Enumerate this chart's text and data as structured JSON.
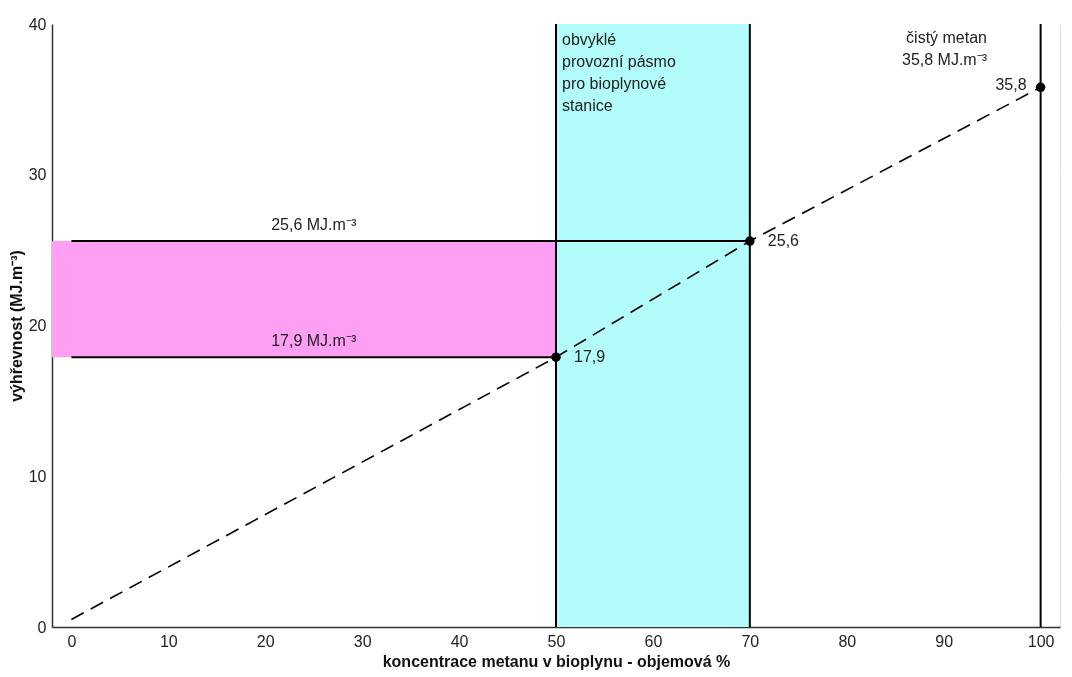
{
  "chart_data": {
    "type": "line",
    "xlabel": "koncentrace  metanu v bioplynu - objemová  %",
    "ylabel": "výhřevnost (MJ.m⁻³)",
    "xlim": [
      -2,
      102
    ],
    "ylim": [
      0,
      40
    ],
    "xticks": [
      0,
      10,
      20,
      30,
      40,
      50,
      60,
      70,
      80,
      90,
      100
    ],
    "yticks": [
      0,
      10,
      20,
      30,
      40
    ],
    "grid": true,
    "series": [
      {
        "color": "#000000",
        "line_style": "dashed",
        "marker": "none",
        "x": [
          0,
          50,
          70,
          100
        ],
        "values": [
          0.5,
          17.9,
          25.6,
          35.8
        ]
      },
      {
        "type": "scatter",
        "color": "#000000",
        "marker": "circle",
        "x": [
          50,
          70,
          100
        ],
        "values": [
          17.9,
          25.6,
          35.8
        ],
        "value_labels": [
          "17,9",
          "25,6",
          "35,8"
        ]
      },
      {
        "type": "line",
        "color": "#000000",
        "line_style": "solid",
        "marker": "none",
        "x": [
          0,
          70
        ],
        "values": [
          25.6,
          25.6
        ]
      },
      {
        "type": "line",
        "color": "#000000",
        "line_style": "solid",
        "marker": "none",
        "x": [
          0,
          50
        ],
        "values": [
          17.9,
          17.9
        ]
      }
    ],
    "bands": [
      {
        "axis": "x",
        "from": 50,
        "to": 70,
        "label": "obvyklé\nprovozní pásmo\npro bioplynové\nstanice",
        "color": "#b3fcfc"
      },
      {
        "axis": "y",
        "from": 17.9,
        "to": 25.6,
        "label": null,
        "color": "#ff9ff3"
      }
    ],
    "ref_lines": [
      {
        "axis": "x",
        "value": 50,
        "label": null,
        "color": "#000000"
      },
      {
        "axis": "x",
        "value": 70,
        "label": null,
        "color": "#000000"
      },
      {
        "axis": "x",
        "value": 100,
        "label": null,
        "color": "#000000"
      }
    ],
    "annotations": [
      {
        "text": "25,6 MJ.m⁻³",
        "x": 25,
        "y": 25.6
      },
      {
        "text": "17,9 MJ.m⁻³",
        "x": 25,
        "y": 17.9
      },
      "čistý metan\n35,8 MJ.m⁻³"
    ]
  }
}
